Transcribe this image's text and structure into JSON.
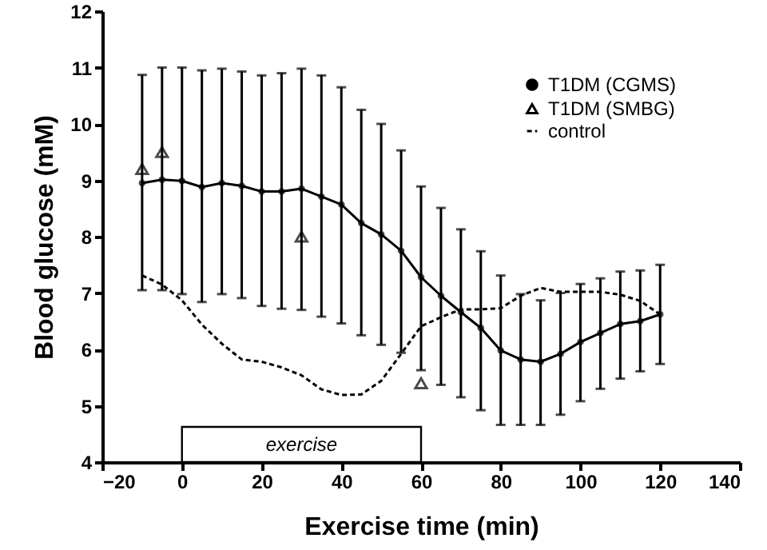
{
  "chart_data": {
    "type": "line",
    "xlabel": "Exercise time (min)",
    "ylabel": "Blood glucose (mM)",
    "xlim": [
      -20,
      140
    ],
    "xticks": [
      -20,
      0,
      20,
      40,
      60,
      80,
      100,
      120,
      140
    ],
    "ylim": [
      4,
      12
    ],
    "yticks": [
      4,
      5,
      6,
      7,
      8,
      9,
      10,
      11,
      12
    ],
    "grid": false,
    "legend": "top right",
    "bands": [
      {
        "axis": "x",
        "from": 0,
        "to": 60,
        "label": "exercise",
        "color": "#ffffff"
      }
    ],
    "x": [
      -10,
      -5,
      0,
      5,
      10,
      15,
      20,
      25,
      30,
      35,
      40,
      45,
      50,
      55,
      60,
      65,
      70,
      75,
      80,
      85,
      90,
      95,
      100,
      105,
      110,
      115,
      120
    ],
    "series": [
      {
        "name": "T1DM (CGMS)",
        "color": "#000000",
        "marker": "circle",
        "line_style": "solid",
        "values": [
          8.95,
          9.01,
          8.99,
          8.88,
          8.95,
          8.9,
          8.8,
          8.8,
          8.85,
          8.71,
          8.57,
          8.24,
          8.04,
          7.75,
          7.28,
          6.95,
          6.66,
          6.38,
          5.98,
          5.82,
          5.78,
          5.92,
          6.13,
          6.29,
          6.45,
          6.5,
          6.62
        ],
        "errors": [
          [
            7.05,
            10.87
          ],
          [
            7.05,
            11.0
          ],
          [
            6.98,
            11.0
          ],
          [
            6.84,
            10.95
          ],
          [
            6.98,
            10.98
          ],
          [
            6.91,
            10.93
          ],
          [
            6.77,
            10.86
          ],
          [
            6.72,
            10.9
          ],
          [
            6.7,
            10.98
          ],
          [
            6.58,
            10.86
          ],
          [
            6.46,
            10.65
          ],
          [
            6.25,
            10.25
          ],
          [
            6.08,
            10.0
          ],
          [
            5.94,
            9.53
          ],
          [
            5.63,
            8.89
          ],
          [
            5.37,
            8.51
          ],
          [
            5.15,
            8.13
          ],
          [
            4.92,
            7.74
          ],
          [
            4.66,
            7.31
          ],
          [
            4.66,
            6.98
          ],
          [
            4.66,
            6.87
          ],
          [
            4.84,
            7.0
          ],
          [
            5.08,
            7.16
          ],
          [
            5.3,
            7.26
          ],
          [
            5.48,
            7.38
          ],
          [
            5.61,
            7.4
          ],
          [
            5.74,
            7.5
          ]
        ]
      },
      {
        "name": "T1DM (SMBG)",
        "type": "scatter",
        "color": "#000000",
        "marker": "triangle",
        "x": [
          -10,
          -5,
          30,
          60
        ],
        "values": [
          9.2,
          9.5,
          8.0,
          5.4
        ]
      },
      {
        "name": "control",
        "color": "#000000",
        "marker": "none",
        "line_style": "dashed",
        "values": [
          7.31,
          7.15,
          6.87,
          6.44,
          6.1,
          5.82,
          5.78,
          5.68,
          5.54,
          5.29,
          5.19,
          5.2,
          5.44,
          5.92,
          6.41,
          6.57,
          6.71,
          6.71,
          6.73,
          6.95,
          7.09,
          7.02,
          7.02,
          7.02,
          6.97,
          6.86,
          6.62
        ]
      }
    ]
  }
}
